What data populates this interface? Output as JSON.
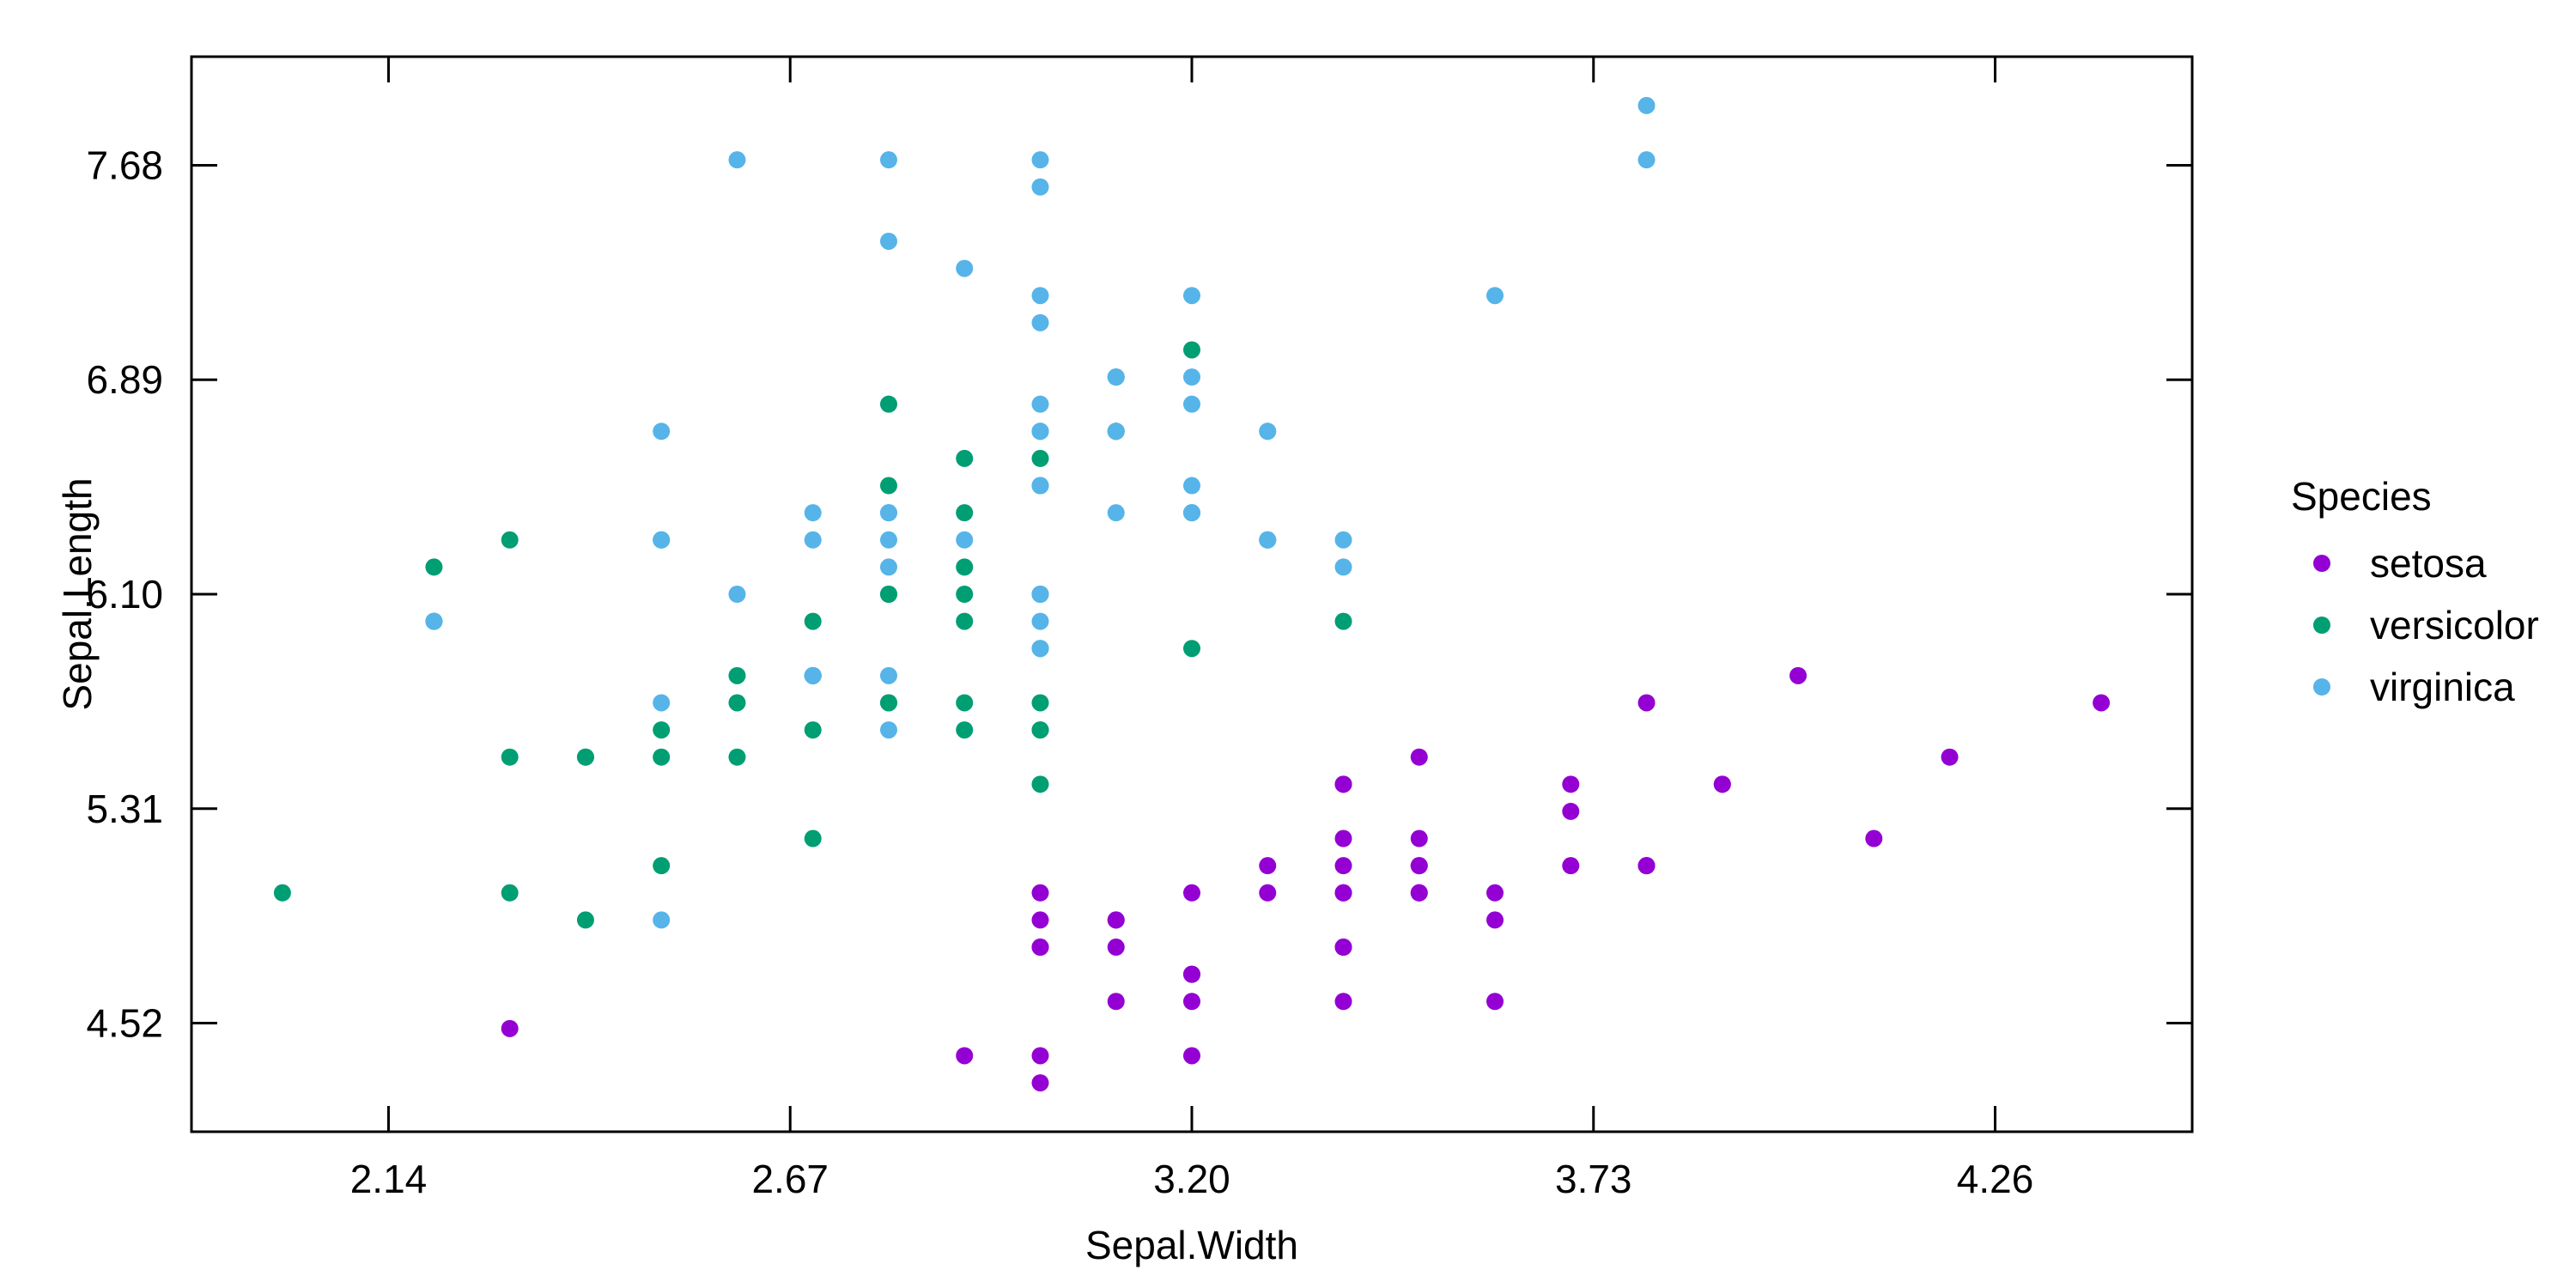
{
  "colors": {
    "background": "#ffffff",
    "frame": "#000000",
    "text": "#000000"
  },
  "chart_data": {
    "type": "scatter",
    "title": "",
    "xlabel": "Sepal.Width",
    "ylabel": "Sepal.Length",
    "xlim": [
      1.88,
      4.52
    ],
    "ylim": [
      4.12,
      8.08
    ],
    "xticks": {
      "values": [
        2.14,
        2.67,
        3.2,
        3.73,
        4.26
      ],
      "labels": [
        "2.14",
        "2.67",
        "3.20",
        "3.73",
        "4.26"
      ]
    },
    "yticks": {
      "values": [
        4.52,
        5.31,
        6.1,
        6.89,
        7.68
      ],
      "labels": [
        "4.52",
        "5.31",
        "6.10",
        "6.89",
        "7.68"
      ]
    },
    "grid": false,
    "marker": "circle",
    "legend": {
      "title": "Species",
      "position": "right-center"
    },
    "series": [
      {
        "name": "setosa",
        "color": "#9400D3",
        "points": [
          [
            3.5,
            5.1
          ],
          [
            3.0,
            4.9
          ],
          [
            3.2,
            4.7
          ],
          [
            3.1,
            4.6
          ],
          [
            3.6,
            5.0
          ],
          [
            3.9,
            5.4
          ],
          [
            3.4,
            4.6
          ],
          [
            3.4,
            5.0
          ],
          [
            2.9,
            4.4
          ],
          [
            3.1,
            4.9
          ],
          [
            3.7,
            5.4
          ],
          [
            3.4,
            4.8
          ],
          [
            3.0,
            4.8
          ],
          [
            3.0,
            4.3
          ],
          [
            4.0,
            5.8
          ],
          [
            4.4,
            5.7
          ],
          [
            3.9,
            5.4
          ],
          [
            3.5,
            5.1
          ],
          [
            3.8,
            5.7
          ],
          [
            3.8,
            5.1
          ],
          [
            3.4,
            5.4
          ],
          [
            3.7,
            5.1
          ],
          [
            3.6,
            4.6
          ],
          [
            3.3,
            5.1
          ],
          [
            3.4,
            4.8
          ],
          [
            3.0,
            5.0
          ],
          [
            3.4,
            5.0
          ],
          [
            3.5,
            5.2
          ],
          [
            3.4,
            5.2
          ],
          [
            3.2,
            4.7
          ],
          [
            3.1,
            4.8
          ],
          [
            3.4,
            5.4
          ],
          [
            4.1,
            5.2
          ],
          [
            4.2,
            5.5
          ],
          [
            3.1,
            4.9
          ],
          [
            3.2,
            5.0
          ],
          [
            3.5,
            5.5
          ],
          [
            3.6,
            4.9
          ],
          [
            3.0,
            4.4
          ],
          [
            3.4,
            5.1
          ],
          [
            3.5,
            5.0
          ],
          [
            2.3,
            4.5
          ],
          [
            3.2,
            4.4
          ],
          [
            3.5,
            5.0
          ],
          [
            3.8,
            5.1
          ],
          [
            3.0,
            4.8
          ],
          [
            3.8,
            5.1
          ],
          [
            3.2,
            4.6
          ],
          [
            3.7,
            5.3
          ],
          [
            3.3,
            5.0
          ]
        ]
      },
      {
        "name": "versicolor",
        "color": "#009E73",
        "points": [
          [
            3.2,
            7.0
          ],
          [
            3.2,
            6.4
          ],
          [
            3.1,
            6.9
          ],
          [
            2.3,
            5.5
          ],
          [
            2.8,
            6.5
          ],
          [
            2.8,
            5.7
          ],
          [
            3.3,
            6.3
          ],
          [
            2.4,
            4.9
          ],
          [
            2.9,
            6.6
          ],
          [
            2.7,
            5.2
          ],
          [
            2.0,
            5.0
          ],
          [
            3.0,
            5.9
          ],
          [
            2.2,
            6.0
          ],
          [
            2.9,
            6.1
          ],
          [
            2.9,
            5.6
          ],
          [
            3.1,
            6.7
          ],
          [
            3.0,
            5.6
          ],
          [
            2.7,
            5.8
          ],
          [
            2.2,
            6.2
          ],
          [
            2.5,
            5.6
          ],
          [
            3.2,
            5.9
          ],
          [
            2.8,
            6.1
          ],
          [
            2.5,
            6.3
          ],
          [
            2.8,
            6.1
          ],
          [
            2.9,
            6.4
          ],
          [
            3.0,
            6.6
          ],
          [
            2.8,
            6.8
          ],
          [
            3.0,
            6.7
          ],
          [
            2.9,
            6.0
          ],
          [
            2.6,
            5.7
          ],
          [
            2.4,
            5.5
          ],
          [
            2.4,
            5.5
          ],
          [
            2.7,
            5.8
          ],
          [
            2.7,
            6.0
          ],
          [
            3.0,
            5.4
          ],
          [
            3.4,
            6.0
          ],
          [
            3.1,
            6.7
          ],
          [
            2.3,
            6.3
          ],
          [
            3.0,
            5.6
          ],
          [
            2.5,
            5.5
          ],
          [
            2.6,
            5.5
          ],
          [
            3.0,
            6.1
          ],
          [
            2.6,
            5.8
          ],
          [
            2.3,
            5.0
          ],
          [
            2.7,
            5.6
          ],
          [
            3.0,
            5.7
          ],
          [
            2.9,
            5.7
          ],
          [
            2.9,
            6.2
          ],
          [
            2.5,
            5.1
          ],
          [
            2.8,
            5.7
          ]
        ]
      },
      {
        "name": "virginica",
        "color": "#56B4E9",
        "points": [
          [
            3.3,
            6.3
          ],
          [
            2.7,
            5.8
          ],
          [
            3.0,
            7.1
          ],
          [
            2.9,
            6.3
          ],
          [
            3.0,
            6.5
          ],
          [
            3.0,
            7.6
          ],
          [
            2.5,
            4.9
          ],
          [
            2.9,
            7.3
          ],
          [
            2.5,
            6.7
          ],
          [
            3.6,
            7.2
          ],
          [
            3.2,
            6.5
          ],
          [
            2.7,
            6.4
          ],
          [
            3.0,
            6.8
          ],
          [
            2.5,
            5.7
          ],
          [
            2.8,
            5.8
          ],
          [
            3.2,
            6.4
          ],
          [
            3.0,
            6.5
          ],
          [
            3.8,
            7.7
          ],
          [
            2.6,
            7.7
          ],
          [
            2.2,
            6.0
          ],
          [
            3.2,
            6.9
          ],
          [
            2.8,
            5.6
          ],
          [
            2.8,
            7.7
          ],
          [
            2.7,
            6.3
          ],
          [
            3.3,
            6.7
          ],
          [
            3.2,
            7.2
          ],
          [
            2.8,
            6.2
          ],
          [
            3.0,
            6.1
          ],
          [
            2.8,
            6.4
          ],
          [
            3.0,
            7.2
          ],
          [
            2.8,
            7.4
          ],
          [
            3.8,
            7.9
          ],
          [
            2.8,
            6.4
          ],
          [
            2.8,
            6.3
          ],
          [
            2.6,
            6.1
          ],
          [
            3.0,
            7.7
          ],
          [
            3.4,
            6.3
          ],
          [
            3.1,
            6.4
          ],
          [
            3.0,
            6.0
          ],
          [
            3.1,
            6.9
          ],
          [
            3.1,
            6.7
          ],
          [
            3.1,
            6.9
          ],
          [
            2.7,
            5.8
          ],
          [
            3.2,
            6.8
          ],
          [
            3.3,
            6.7
          ],
          [
            3.0,
            6.7
          ],
          [
            2.5,
            6.3
          ],
          [
            3.0,
            6.5
          ],
          [
            3.4,
            6.2
          ],
          [
            3.0,
            5.9
          ]
        ]
      }
    ]
  }
}
